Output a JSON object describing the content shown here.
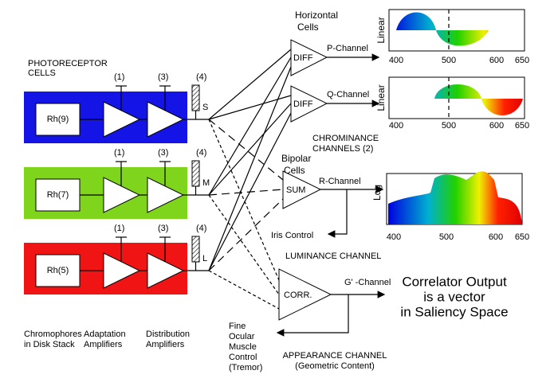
{
  "photoreceptor_label": [
    "PHOTORECEPTOR",
    "CELLS"
  ],
  "rows": [
    {
      "pigment": "Rh(9)",
      "stages": [
        "(1)",
        "(3)",
        "(4)"
      ],
      "cone": "S"
    },
    {
      "pigment": "Rh(7)",
      "stages": [
        "(1)",
        "(3)",
        "(4)"
      ],
      "cone": "M"
    },
    {
      "pigment": "Rh(5)",
      "stages": [
        "(1)",
        "(3)",
        "(4)"
      ],
      "cone": "L"
    }
  ],
  "horizontal_cells": [
    "Horizontal",
    "Cells"
  ],
  "diff_units": [
    "DIFF",
    "DIFF"
  ],
  "p_channel": "P-Channel",
  "q_channel": "Q-Channel",
  "plots": [
    {
      "axis_label": "Linear",
      "ticks": [
        400,
        500,
        600,
        650
      ]
    },
    {
      "axis_label": "Linear",
      "ticks": [
        400,
        500,
        600,
        650
      ]
    },
    {
      "axis_label": "Log",
      "ticks": [
        400,
        500,
        600,
        650
      ]
    }
  ],
  "chrominance": [
    "CHROMINANCE",
    "CHANNELS (2)"
  ],
  "bipolar_cells": [
    "Bipolar",
    "Cells"
  ],
  "sum_unit": "SUM",
  "r_channel": "R-Channel",
  "iris_control": "Iris Control",
  "luminance": "LUMINANCE CHANNEL",
  "corr_unit": "CORR.",
  "g_channel": "G' -Channel",
  "correlator_output": [
    "Correlator Output",
    "is a vector",
    "in Saliency Space"
  ],
  "ocular_control": [
    "Fine",
    "Ocular",
    "Muscle",
    "Control",
    "(Tremor)"
  ],
  "appearance": [
    "APPEARANCE CHANNEL",
    "(Geometric Content)"
  ],
  "bottom_labels": [
    [
      "Chromophores",
      "in Disk Stack"
    ],
    [
      "Adaptation",
      "Amplifiers"
    ],
    [
      "Distribution",
      "Amplifiers"
    ]
  ]
}
